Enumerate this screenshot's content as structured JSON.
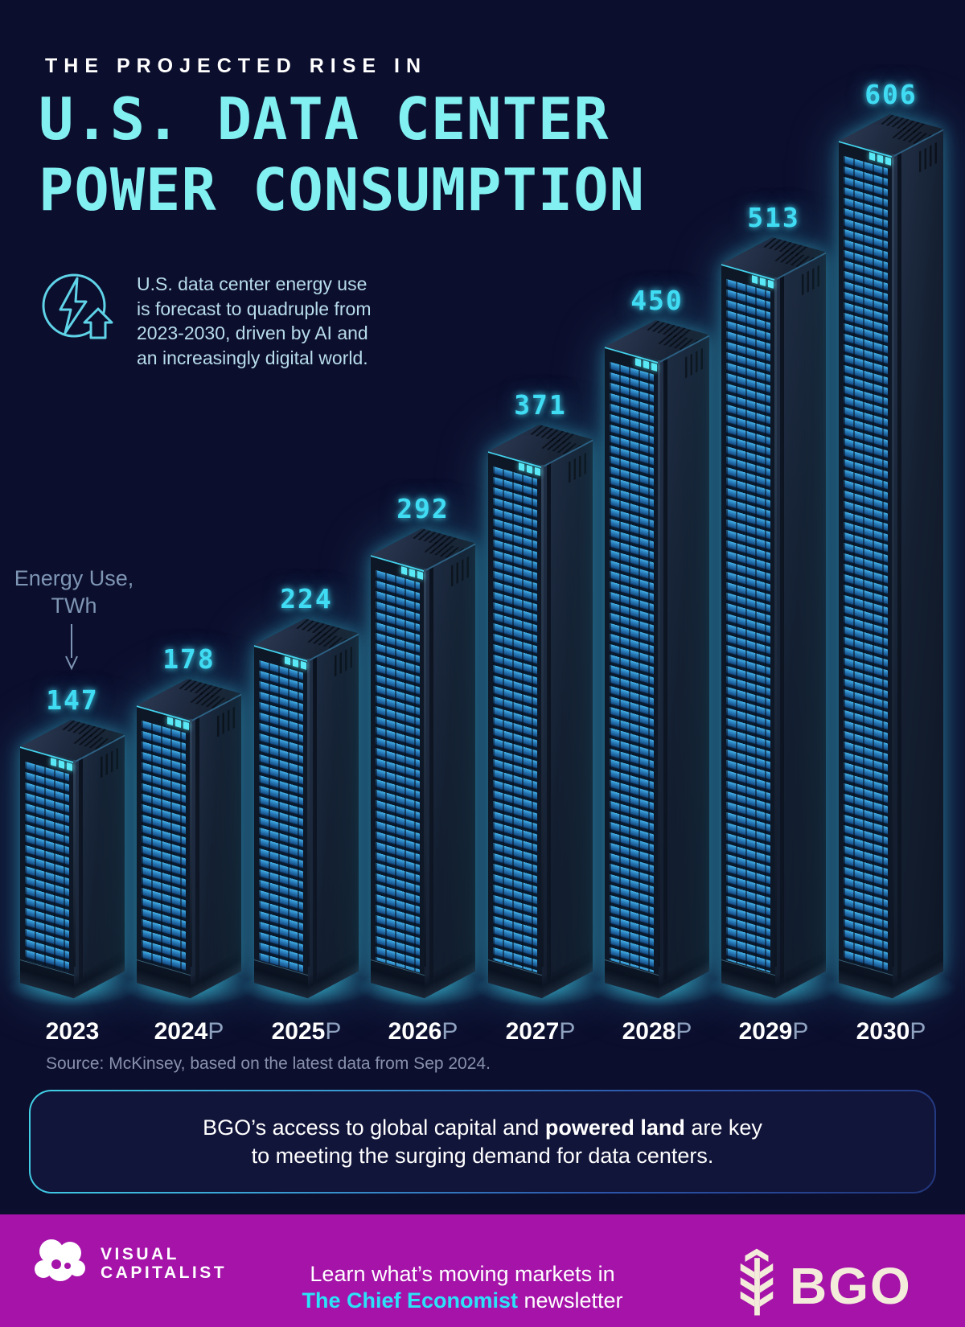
{
  "header": {
    "eyebrow": "THE PROJECTED RISE IN",
    "title_line1": "U.S. DATA CENTER",
    "title_line2": "POWER CONSUMPTION"
  },
  "intro": {
    "text": "U.S. data center energy use\nis forecast to quadruple from\n2023-2030, driven by AI and\nan increasingly digital world."
  },
  "axis_label": {
    "line1": "Energy Use,",
    "line2": "TWh"
  },
  "chart_data": {
    "type": "bar",
    "title": "The Projected Rise in U.S. Data Center Power Consumption",
    "ylabel": "Energy Use, TWh",
    "unit": "TWh",
    "bar_style": "isometric-server-rack",
    "legend": "none",
    "grid": false,
    "categories": [
      {
        "year": "2023",
        "suffix": ""
      },
      {
        "year": "2024",
        "suffix": "P"
      },
      {
        "year": "2025",
        "suffix": "P"
      },
      {
        "year": "2026",
        "suffix": "P"
      },
      {
        "year": "2027",
        "suffix": "P"
      },
      {
        "year": "2028",
        "suffix": "P"
      },
      {
        "year": "2029",
        "suffix": "P"
      },
      {
        "year": "2030",
        "suffix": "P"
      }
    ],
    "values": [
      147,
      178,
      224,
      292,
      371,
      450,
      513,
      606
    ],
    "accent_color": "#40DCF4"
  },
  "source": {
    "text": "Source: McKinsey, based on the latest data from Sep 2024."
  },
  "callout": {
    "line1_pre": "BGO’s access to global capital and ",
    "line1_bold": "powered land",
    "line1_post": " are key",
    "line2": "to meeting the surging demand for data centers."
  },
  "footer": {
    "vc_logo_line1": "VISUAL",
    "vc_logo_line2": "CAPITALIST",
    "learn_line1": "Learn what’s moving markets in",
    "newsletter_bold": "The Chief Economist",
    "newsletter_rest": " newsletter",
    "bgo_label": "BGO"
  },
  "colors": {
    "background": "#0C0E2D",
    "title_cyan": "#82EFF1",
    "value_cyan": "#40DCF4",
    "intro_text": "#B7DCEA",
    "axis_muted": "#7E96B4",
    "footer_magenta": "#A513A9",
    "newsletter_cyan": "#2BE3F8",
    "bgo_cream": "#F4ECDB"
  }
}
